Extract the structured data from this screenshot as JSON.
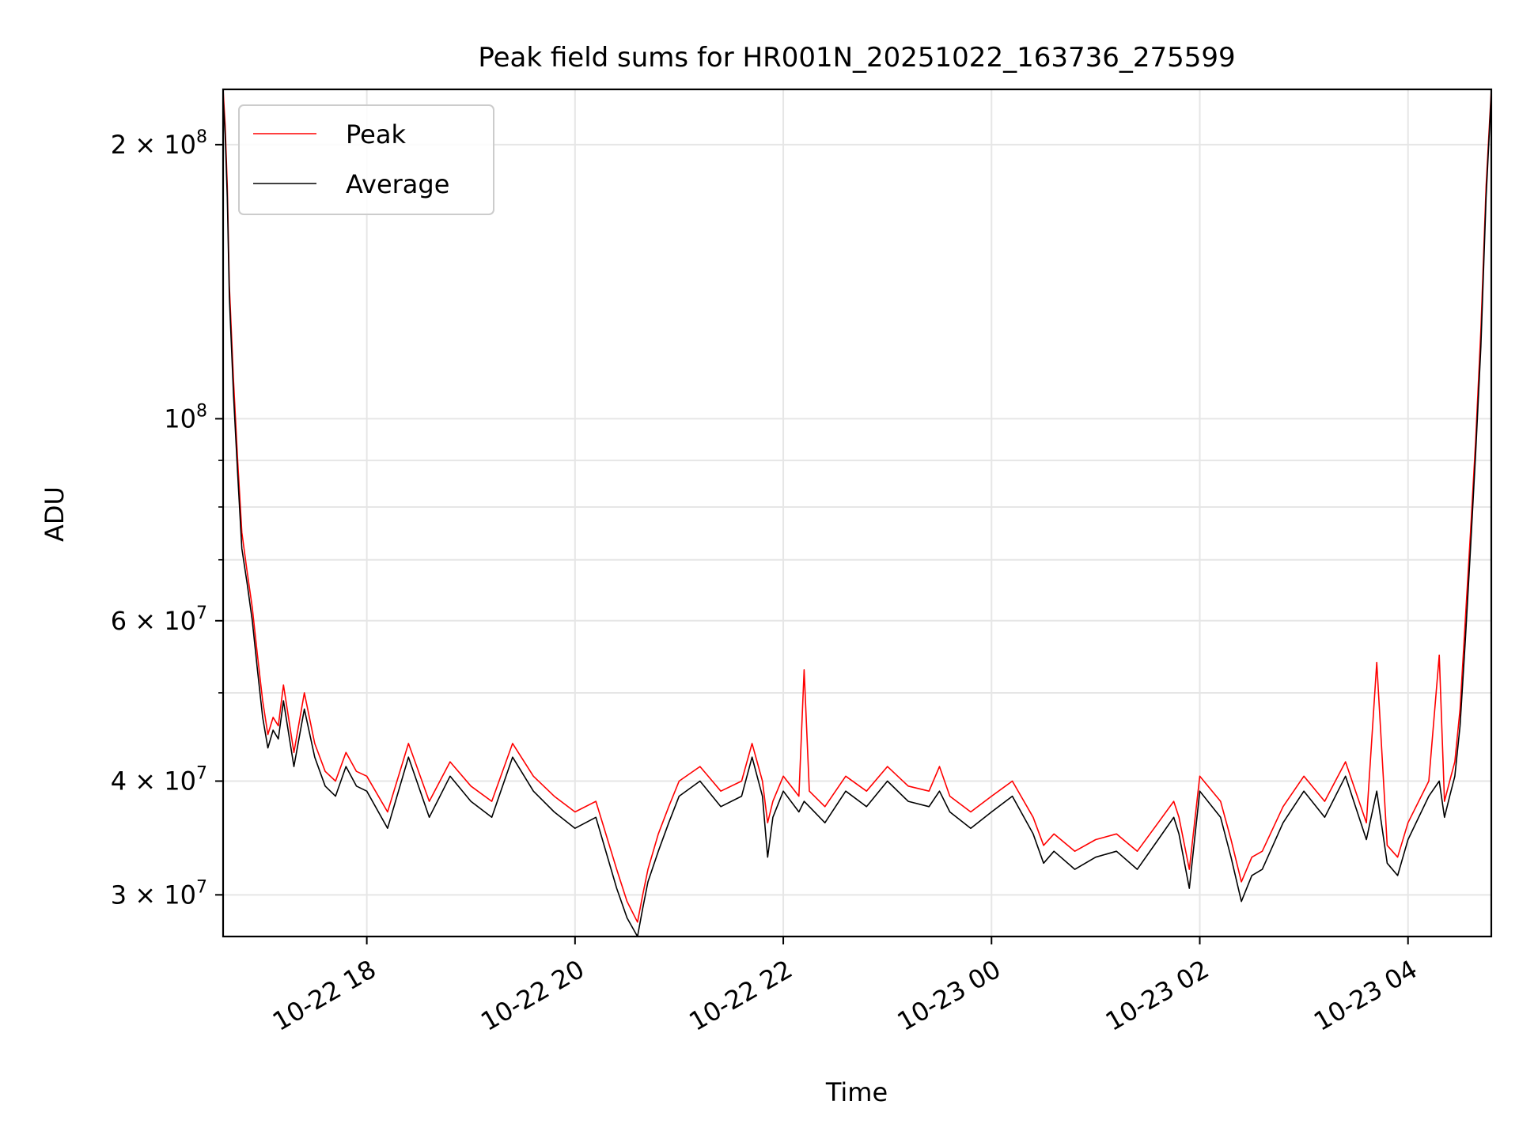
{
  "chart_data": {
    "type": "line",
    "title": "Peak field sums for HR001N_20251022_163736_275599",
    "xlabel": "Time",
    "ylabel": "ADU",
    "yscale": "log",
    "ylim": [
      27000000,
      230000000
    ],
    "xlim_hours": [
      16.62,
      28.8
    ],
    "grid": true,
    "legend_position": "upper-left",
    "x_ticks": [
      {
        "hour": 18,
        "label": "10-22 18"
      },
      {
        "hour": 20,
        "label": "10-22 20"
      },
      {
        "hour": 22,
        "label": "10-22 22"
      },
      {
        "hour": 24,
        "label": "10-23 00"
      },
      {
        "hour": 26,
        "label": "10-23 02"
      },
      {
        "hour": 28,
        "label": "10-23 04"
      }
    ],
    "y_ticks": [
      {
        "value": 200000000,
        "base": "2",
        "exp": "8",
        "sci": true
      },
      {
        "value": 100000000,
        "base": "",
        "exp": "8",
        "sci": false
      },
      {
        "value": 60000000,
        "base": "6",
        "exp": "7",
        "sci": true
      },
      {
        "value": 40000000,
        "base": "4",
        "exp": "7",
        "sci": true
      },
      {
        "value": 30000000,
        "base": "3",
        "exp": "7",
        "sci": true
      }
    ],
    "y_minor_ticks": [
      90000000,
      80000000,
      70000000,
      50000000
    ],
    "series": [
      {
        "name": "Peak",
        "color": "#ff0000",
        "x_hours": [
          16.62,
          16.64,
          16.66,
          16.68,
          16.72,
          16.76,
          16.8,
          16.85,
          16.9,
          16.95,
          17.0,
          17.05,
          17.1,
          17.15,
          17.2,
          17.3,
          17.4,
          17.5,
          17.6,
          17.7,
          17.8,
          17.9,
          18.0,
          18.2,
          18.4,
          18.6,
          18.8,
          19.0,
          19.2,
          19.4,
          19.6,
          19.8,
          20.0,
          20.2,
          20.4,
          20.5,
          20.6,
          20.65,
          20.7,
          20.8,
          20.9,
          21.0,
          21.2,
          21.4,
          21.6,
          21.7,
          21.8,
          21.85,
          21.9,
          22.0,
          22.15,
          22.2,
          22.25,
          22.4,
          22.6,
          22.8,
          23.0,
          23.2,
          23.4,
          23.5,
          23.6,
          23.8,
          24.0,
          24.2,
          24.4,
          24.5,
          24.6,
          24.8,
          25.0,
          25.2,
          25.4,
          25.6,
          25.75,
          25.8,
          25.9,
          26.0,
          26.2,
          26.3,
          26.4,
          26.5,
          26.6,
          26.8,
          27.0,
          27.2,
          27.4,
          27.6,
          27.7,
          27.8,
          27.9,
          28.0,
          28.2,
          28.3,
          28.35,
          28.4,
          28.45,
          28.5,
          28.55,
          28.6,
          28.65,
          28.7,
          28.75,
          28.8
        ],
        "values": [
          230000000,
          210000000,
          180000000,
          140000000,
          110000000,
          90000000,
          75000000,
          68000000,
          62000000,
          55000000,
          49000000,
          45000000,
          47000000,
          46000000,
          51000000,
          43000000,
          50000000,
          44000000,
          41000000,
          40000000,
          43000000,
          41000000,
          40500000,
          37000000,
          44000000,
          38000000,
          42000000,
          39500000,
          38000000,
          44000000,
          40500000,
          38500000,
          37000000,
          38000000,
          32000000,
          29500000,
          28000000,
          30000000,
          32000000,
          35000000,
          37500000,
          40000000,
          41500000,
          39000000,
          40000000,
          44000000,
          40000000,
          36000000,
          38000000,
          40500000,
          38500000,
          53000000,
          39000000,
          37500000,
          40500000,
          39000000,
          41500000,
          39500000,
          39000000,
          41500000,
          38500000,
          37000000,
          38500000,
          40000000,
          36500000,
          34000000,
          35000000,
          33500000,
          34500000,
          35000000,
          33500000,
          36000000,
          38000000,
          36500000,
          32000000,
          40500000,
          38000000,
          34500000,
          31000000,
          33000000,
          33500000,
          37500000,
          40500000,
          38000000,
          42000000,
          36000000,
          54000000,
          34000000,
          33000000,
          36000000,
          40000000,
          55000000,
          38000000,
          40000000,
          42000000,
          48000000,
          60000000,
          75000000,
          95000000,
          125000000,
          180000000,
          230000000
        ]
      },
      {
        "name": "Average",
        "color": "#000000",
        "x_hours": [
          16.62,
          16.64,
          16.66,
          16.68,
          16.72,
          16.76,
          16.8,
          16.85,
          16.9,
          16.95,
          17.0,
          17.05,
          17.1,
          17.15,
          17.2,
          17.3,
          17.4,
          17.5,
          17.6,
          17.7,
          17.8,
          17.9,
          18.0,
          18.2,
          18.4,
          18.6,
          18.8,
          19.0,
          19.2,
          19.4,
          19.6,
          19.8,
          20.0,
          20.2,
          20.4,
          20.5,
          20.6,
          20.65,
          20.7,
          20.8,
          20.9,
          21.0,
          21.2,
          21.4,
          21.6,
          21.7,
          21.8,
          21.85,
          21.9,
          22.0,
          22.15,
          22.2,
          22.25,
          22.4,
          22.6,
          22.8,
          23.0,
          23.2,
          23.4,
          23.5,
          23.6,
          23.8,
          24.0,
          24.2,
          24.4,
          24.5,
          24.6,
          24.8,
          25.0,
          25.2,
          25.4,
          25.6,
          25.75,
          25.8,
          25.9,
          26.0,
          26.2,
          26.3,
          26.4,
          26.5,
          26.6,
          26.8,
          27.0,
          27.2,
          27.4,
          27.6,
          27.7,
          27.8,
          27.9,
          28.0,
          28.2,
          28.3,
          28.35,
          28.4,
          28.45,
          28.5,
          28.55,
          28.6,
          28.65,
          28.7,
          28.75,
          28.8
        ],
        "values": [
          225000000,
          205000000,
          175000000,
          136000000,
          106000000,
          87000000,
          72000000,
          66000000,
          60000000,
          53000000,
          47000000,
          43500000,
          45500000,
          44500000,
          49000000,
          41500000,
          48000000,
          42500000,
          39500000,
          38500000,
          41500000,
          39500000,
          39000000,
          35500000,
          42500000,
          36500000,
          40500000,
          38000000,
          36500000,
          42500000,
          39000000,
          37000000,
          35500000,
          36500000,
          30500000,
          28300000,
          27000000,
          29000000,
          31000000,
          33500000,
          36000000,
          38500000,
          40000000,
          37500000,
          38500000,
          42500000,
          38500000,
          33000000,
          36500000,
          39000000,
          37000000,
          38000000,
          37500000,
          36000000,
          39000000,
          37500000,
          40000000,
          38000000,
          37500000,
          39000000,
          37000000,
          35500000,
          37000000,
          38500000,
          35000000,
          32500000,
          33500000,
          32000000,
          33000000,
          33500000,
          32000000,
          34500000,
          36500000,
          35000000,
          30500000,
          39000000,
          36500000,
          33000000,
          29500000,
          31500000,
          32000000,
          36000000,
          39000000,
          36500000,
          40500000,
          34500000,
          39000000,
          32500000,
          31500000,
          34500000,
          38500000,
          40000000,
          36500000,
          38500000,
          40500000,
          46000000,
          57000000,
          72000000,
          92000000,
          120000000,
          175000000,
          228000000
        ]
      }
    ]
  }
}
